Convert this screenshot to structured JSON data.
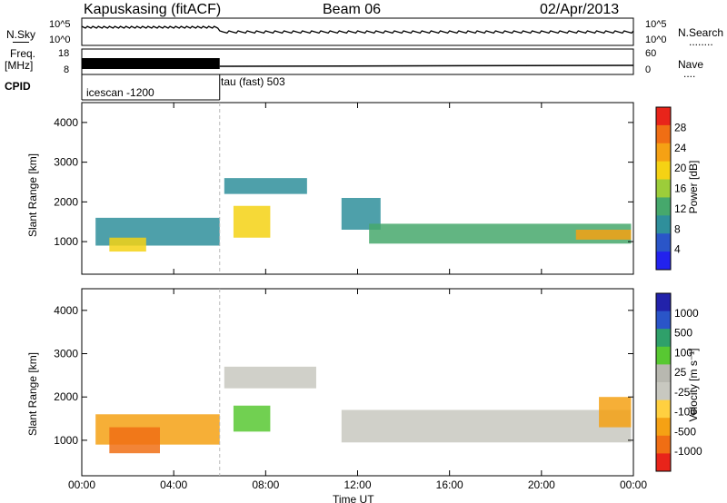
{
  "header": {
    "station": "Kapuskasing (fitACF)",
    "beam": "Beam 06",
    "date": "02/Apr/2013"
  },
  "strips": {
    "nsky_label": "N.Sky",
    "nsearch_label": "N.Search",
    "nsearch_dots": "........",
    "count_tick_top": "10^5",
    "count_tick_bottom": "10^0",
    "freq_label_1": "Freq.",
    "freq_label_2": "[MHz]",
    "freq_ticks": [
      "18",
      "8"
    ],
    "nave_label": "Nave",
    "nave_dots": "....",
    "nave_ticks": [
      "60",
      "0"
    ],
    "cpid_label": "CPID",
    "cpid_1": "icescan -1200",
    "cpid_2": "tau (fast) 503"
  },
  "colors": {
    "power_scale": [
      "#2222ee",
      "#2a55c8",
      "#2f8f9b",
      "#46a86c",
      "#9ccd3a",
      "#f5d214",
      "#f5a114",
      "#f06e14",
      "#e8241a"
    ],
    "velocity_scale": [
      "#e8241a",
      "#f06e14",
      "#f5a114",
      "#ffd040",
      "#c8c8c0",
      "#b8b8b0",
      "#58c832",
      "#2fa06a",
      "#2a55c8",
      "#2222aa"
    ]
  },
  "chart_data": [
    {
      "type": "heatmap",
      "name": "power",
      "ylabel": "Slant Range [km]",
      "xlabel": "",
      "x_range_hours": [
        0,
        24
      ],
      "ylim": [
        180,
        4500
      ],
      "yticks": [
        "1000",
        "2000",
        "3000",
        "4000"
      ],
      "colorbar_label": "Power [dB]",
      "colorbar_ticks": [
        "28",
        "24",
        "20",
        "16",
        "12",
        "8",
        "4"
      ],
      "clim": [
        0,
        30
      ],
      "regions": [
        {
          "t0": 0.6,
          "t1": 6.0,
          "r0": 900,
          "r1": 1600,
          "level": 9
        },
        {
          "t0": 1.2,
          "t1": 2.8,
          "r0": 750,
          "r1": 1100,
          "level": 19
        },
        {
          "t0": 6.6,
          "t1": 8.2,
          "r0": 1100,
          "r1": 1900,
          "level": 20
        },
        {
          "t0": 6.2,
          "t1": 9.8,
          "r0": 2200,
          "r1": 2600,
          "level": 8
        },
        {
          "t0": 11.3,
          "t1": 13.0,
          "r0": 1300,
          "r1": 2100,
          "level": 9
        },
        {
          "t0": 12.5,
          "t1": 23.9,
          "r0": 950,
          "r1": 1450,
          "level": 10
        },
        {
          "t0": 21.5,
          "t1": 23.9,
          "r0": 1050,
          "r1": 1300,
          "level": 22
        }
      ]
    },
    {
      "type": "heatmap",
      "name": "velocity",
      "ylabel": "Slant Range [km]",
      "xlabel": "Time UT",
      "x_range_hours": [
        0,
        24
      ],
      "xticks": [
        "00:00",
        "04:00",
        "08:00",
        "12:00",
        "16:00",
        "20:00",
        "00:00"
      ],
      "ylim": [
        180,
        4500
      ],
      "yticks": [
        "1000",
        "2000",
        "3000",
        "4000"
      ],
      "colorbar_label": "Velocity [m s⁻¹]",
      "colorbar_ticks": [
        "1000",
        "500",
        "100",
        "25",
        "-25",
        "-100",
        "-500",
        "-1000"
      ],
      "regions": [
        {
          "t0": 0.6,
          "t1": 6.0,
          "r0": 900,
          "r1": 1600,
          "level": "-100"
        },
        {
          "t0": 1.2,
          "t1": 3.4,
          "r0": 700,
          "r1": 1300,
          "level": "-500"
        },
        {
          "t0": 6.6,
          "t1": 8.2,
          "r0": 1200,
          "r1": 1800,
          "level": "100"
        },
        {
          "t0": 6.2,
          "t1": 10.2,
          "r0": 2200,
          "r1": 2700,
          "level": "25"
        },
        {
          "t0": 11.3,
          "t1": 23.9,
          "r0": 950,
          "r1": 1700,
          "level": "25"
        },
        {
          "t0": 22.5,
          "t1": 23.9,
          "r0": 1300,
          "r1": 2000,
          "level": "-100"
        }
      ]
    }
  ]
}
